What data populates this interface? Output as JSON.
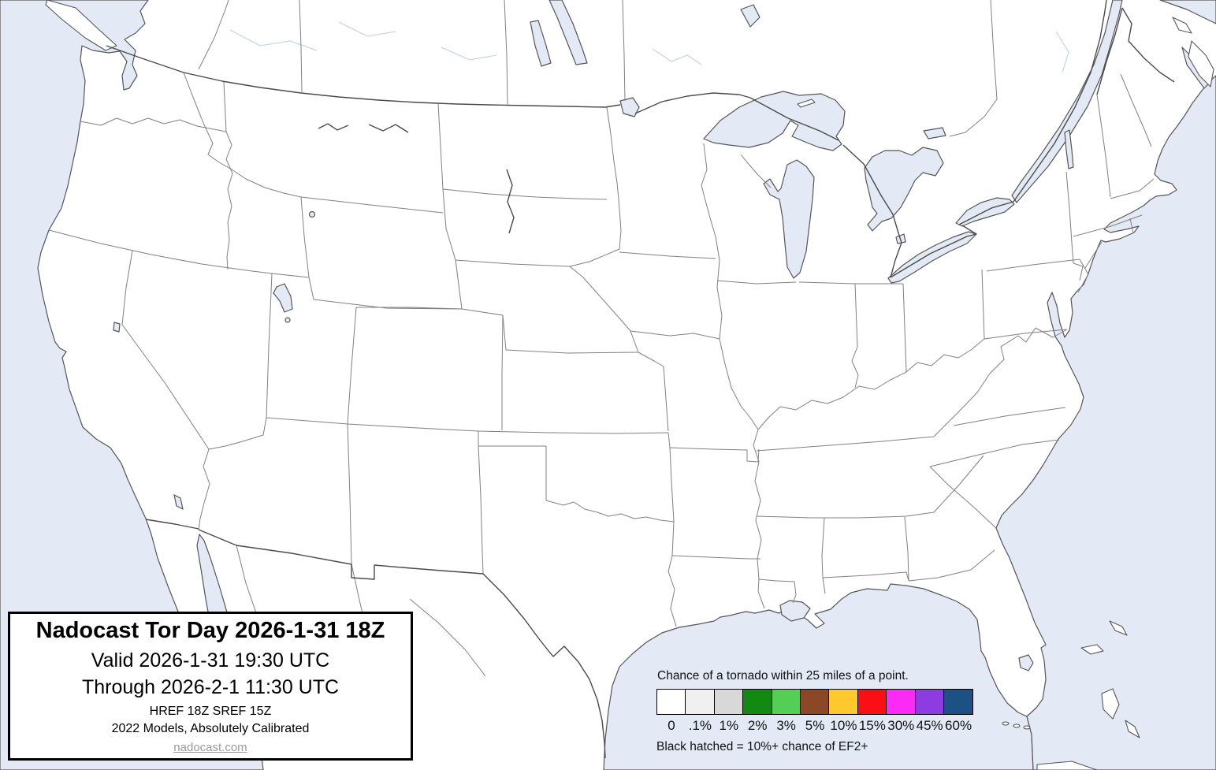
{
  "title_box": {
    "title": "Nadocast Tor Day 2026-1-31 18Z",
    "valid_line": "Valid 2026-1-31 19:30 UTC",
    "through_line": "Through 2026-2-1 11:30 UTC",
    "models_line": "HREF 18Z SREF 15Z",
    "calibration_line": "2022 Models, Absolutely Calibrated",
    "site_link": "nadocast.com"
  },
  "legend": {
    "heading": "Chance of a tornado within 25 miles of a point.",
    "bins": [
      {
        "label": "0",
        "color": "#FFFFFF"
      },
      {
        "label": ".1%",
        "color": "#F0F0F0"
      },
      {
        "label": "1%",
        "color": "#D8D8D8"
      },
      {
        "label": "2%",
        "color": "#128A12"
      },
      {
        "label": "3%",
        "color": "#55CE55"
      },
      {
        "label": "5%",
        "color": "#8B4726"
      },
      {
        "label": "10%",
        "color": "#FFC82C"
      },
      {
        "label": "15%",
        "color": "#FA0F14"
      },
      {
        "label": "30%",
        "color": "#FB2BF5"
      },
      {
        "label": "45%",
        "color": "#8C3CE0"
      },
      {
        "label": "60%",
        "color": "#1D5186"
      }
    ],
    "note": "Black hatched = 10%+ chance of EF2+"
  },
  "map": {
    "water_color": "#E4E9F6",
    "land_color": "#FFFFFF",
    "coast_color": "#555555",
    "state_border_color": "#808080",
    "national_border_color": "#4a4a4a",
    "faint_river_color": "#c9d5ee"
  }
}
